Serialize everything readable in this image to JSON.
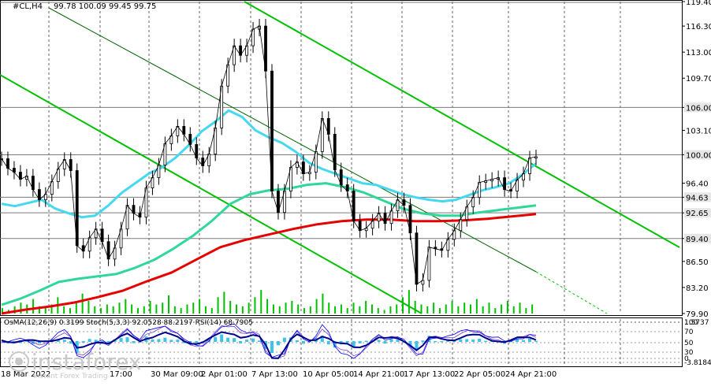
{
  "chart_data": {
    "type": "line",
    "symbol_header": "#CL,H4",
    "ohlc_header": "99.78 100.09 99.45 99.75",
    "price_axis": {
      "ylim": [
        79.9,
        119.4
      ],
      "ticks": [
        "119.40",
        "116.30",
        "113.00",
        "109.70",
        "106.00",
        "103.10",
        "100.00",
        "96.40",
        "94.63",
        "92.65",
        "89.40",
        "86.50",
        "83.20",
        "79.90"
      ],
      "tick_values": [
        119.4,
        116.3,
        113.0,
        109.7,
        106.0,
        103.1,
        100.0,
        96.4,
        94.63,
        92.65,
        89.4,
        86.5,
        83.2,
        79.9
      ],
      "highlighted_levels": [
        "106.00",
        "100.00",
        "94.63",
        "92.65",
        "89.40"
      ],
      "highlighted_values": [
        106.0,
        100.0,
        94.63,
        92.65,
        89.4
      ]
    },
    "x_tick_labels": [
      "18 Mar 2022",
      "17:00",
      "30 Mar 09:00",
      "2 Apr 01:00",
      "7 Apr 13:00",
      "10 Apr 05:00",
      "14 Apr 21:00",
      "17 Apr 13:00",
      "22 Apr 05:00",
      "24 Apr 21:00"
    ],
    "series": [
      {
        "name": "price",
        "color": "#000000",
        "values": [
          99.5,
          98.3,
          97.8,
          96.9,
          97.3,
          95.6,
          94.3,
          95.0,
          96.6,
          98.2,
          99.4,
          98.0,
          88.5,
          87.8,
          89.5,
          90.6,
          89.0,
          86.8,
          88.2,
          90.6,
          93.6,
          92.6,
          92.1,
          95.8,
          97.1,
          98.7,
          101.4,
          102.4,
          103.6,
          102.6,
          101.3,
          99.6,
          98.6,
          100.1,
          103.4,
          108.7,
          111.4,
          113.8,
          112.6,
          113.8,
          115.9,
          116.3,
          110.6,
          95.4,
          92.7,
          95.4,
          98.4,
          99.1,
          97.6,
          97.8,
          100.4,
          104.6,
          102.6,
          98.1,
          96.2,
          95.4,
          91.6,
          90.4,
          90.7,
          91.6,
          92.6,
          91.3,
          92.9,
          94.3,
          93.6,
          90.1,
          83.6,
          84.1,
          88.3,
          88.1,
          87.9,
          89.3,
          90.4,
          91.8,
          93.4,
          94.6,
          96.5,
          96.7,
          96.9,
          97.1,
          95.6,
          95.4,
          96.8,
          97.6,
          99.6,
          99.75
        ]
      },
      {
        "color": "#46d8f0",
        "values": [
          93.8,
          93.5,
          93.9,
          94.3,
          93.2,
          92.6,
          92.1,
          92.3,
          93.6,
          95.2,
          96.4,
          97.6,
          98.4,
          99.6,
          101.2,
          103.0,
          104.2,
          105.6,
          104.8,
          103.1,
          102.2,
          101.5,
          100.4,
          99.0,
          98.2,
          97.6,
          97.0,
          96.4,
          96.2,
          95.6,
          95.0,
          94.6,
          94.3,
          94.1,
          94.3,
          94.9,
          95.5,
          95.9,
          96.4,
          97.5,
          98.9
        ]
      },
      {
        "color": "#2fd89a",
        "values": [
          81.0,
          81.8,
          82.8,
          83.9,
          84.3,
          84.6,
          84.9,
          85.7,
          86.7,
          88.1,
          89.7,
          91.6,
          93.8,
          95.0,
          95.5,
          95.7,
          96.2,
          96.4,
          95.9,
          95.2,
          94.2,
          93.2,
          92.6,
          92.3,
          92.3,
          92.7,
          93.0,
          93.3,
          93.6
        ]
      },
      {
        "color": "#e60000",
        "values": [
          79.9,
          80.4,
          80.8,
          81.3,
          82.0,
          82.8,
          84.0,
          85.1,
          86.7,
          88.3,
          89.2,
          89.9,
          90.6,
          91.2,
          91.6,
          91.8,
          91.8,
          91.6,
          91.6,
          91.7,
          91.9,
          92.2,
          92.5
        ]
      }
    ],
    "volume": [
      3,
      2,
      4,
      6,
      5,
      8,
      4,
      3,
      5,
      9,
      4,
      3,
      6,
      11,
      7,
      4,
      3,
      5,
      4,
      6,
      8,
      5,
      3,
      4,
      7,
      5,
      6,
      10,
      4,
      3,
      5,
      6,
      8,
      4,
      3,
      9,
      12,
      7,
      5,
      4,
      6,
      9,
      13,
      8,
      5,
      4,
      6,
      7,
      5,
      3,
      4,
      8,
      11,
      6,
      4,
      5,
      3,
      6,
      4,
      7,
      5,
      3,
      2,
      4,
      5,
      9,
      13,
      7,
      5,
      4,
      6,
      3,
      5,
      7,
      4,
      6,
      5,
      8,
      4,
      6,
      3,
      5,
      7,
      4,
      6,
      3,
      5
    ],
    "subwindow": {
      "header": "OsMA(12,26,9) 0.3199  Stoch(5,3,3) 92.0528 88.2197  RSI(14) 68.7905",
      "ticks": [
        "1.5737",
        "100",
        "70",
        "50",
        "30",
        "0",
        "-3.8184"
      ],
      "tick_values": [
        1.5737,
        100,
        70,
        50,
        30,
        0,
        -3.8184
      ]
    },
    "watermark": {
      "brand": "instaforex",
      "tagline": "Instant Forex Trading"
    },
    "colors": {
      "trend_line": "#00c000",
      "grid": "#000000",
      "osma_bars": "#3cc3ea",
      "stoch_line": "#00008b",
      "rsi_line": "#7d3fc4"
    }
  }
}
